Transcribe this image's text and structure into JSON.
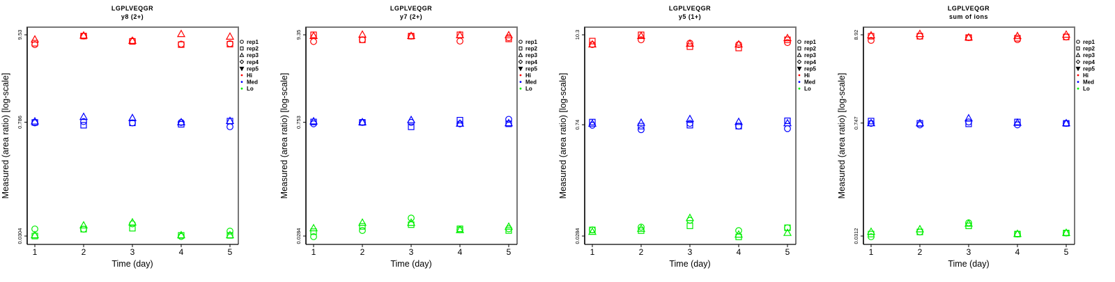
{
  "chart_data": [
    {
      "type": "scatter",
      "title": "LGPLVEQGR",
      "subtitle": "y8 (2+)",
      "xlabel": "Time (day)",
      "ylabel": "Measured (area ratio) [log-scale]",
      "yscale": "log",
      "x": [
        1,
        2,
        3,
        4,
        5
      ],
      "yticks": [
        0.0304,
        0.786,
        9.53
      ],
      "ytick_labels": [
        "0.0304",
        "0.786",
        "9.53"
      ],
      "ylim": [
        0.0304,
        9.53
      ],
      "series": [
        {
          "name": "Hi",
          "color": "#ff0000",
          "reps": {
            "rep1": [
              7.2,
              9.2,
              8.0,
              7.3,
              7.4
            ],
            "rep2": [
              7.5,
              9.2,
              7.9,
              7.2,
              7.3
            ],
            "rep3": [
              8.3,
              9.3,
              8.0,
              9.7,
              9.0
            ]
          }
        },
        {
          "name": "Med",
          "color": "#0000ff",
          "reps": {
            "rep1": [
              0.77,
              0.8,
              0.77,
              0.78,
              0.69
            ],
            "rep2": [
              0.78,
              0.72,
              0.77,
              0.74,
              0.81
            ],
            "rep3": [
              0.8,
              0.91,
              0.88,
              0.78,
              0.81
            ]
          }
        },
        {
          "name": "Lo",
          "color": "#00ee00",
          "reps": {
            "rep1": [
              0.0372,
              0.037,
              0.043,
              0.03,
              0.035
            ],
            "rep2": [
              0.0304,
              0.037,
              0.038,
              0.031,
              0.031
            ],
            "rep3": [
              0.031,
              0.041,
              0.0447,
              0.031,
              0.031
            ]
          }
        }
      ],
      "legend": {
        "position": "right",
        "entries": [
          "rep1",
          "rep2",
          "rep3",
          "rep4",
          "rep5",
          "Hi",
          "Med",
          "Lo"
        ]
      }
    },
    {
      "type": "scatter",
      "title": "LGPLVEQGR",
      "subtitle": "y7 (2+)",
      "xlabel": "Time (day)",
      "ylabel": "Measured (area ratio) [log-scale]",
      "yscale": "log",
      "x": [
        1,
        2,
        3,
        4,
        5
      ],
      "yticks": [
        0.0284,
        0.753,
        9.35
      ],
      "ytick_labels": [
        "0.0284",
        "0.753",
        "9.35"
      ],
      "ylim": [
        0.0284,
        9.35
      ],
      "series": [
        {
          "name": "Hi",
          "color": "#ff0000",
          "reps": {
            "rep1": [
              7.7,
              8.1,
              9.0,
              7.8,
              8.6
            ],
            "rep2": [
              9.35,
              8.1,
              9.0,
              9.35,
              8.3
            ],
            "rep3": [
              9.0,
              9.35,
              9.0,
              9.2,
              9.2
            ]
          }
        },
        {
          "name": "Med",
          "color": "#0000ff",
          "reps": {
            "rep1": [
              0.72,
              0.75,
              0.75,
              0.72,
              0.82
            ],
            "rep2": [
              0.76,
              0.75,
              0.66,
              0.8,
              0.72
            ],
            "rep3": [
              0.77,
              0.75,
              0.8,
              0.72,
              0.73
            ]
          }
        },
        {
          "name": "Lo",
          "color": "#00ee00",
          "reps": {
            "rep1": [
              0.0279,
              0.0333,
              0.0477,
              0.034,
              0.035
            ],
            "rep2": [
              0.0322,
              0.0375,
              0.0394,
              0.035,
              0.0333
            ],
            "rep3": [
              0.0354,
              0.0415,
              0.0415,
              0.0336,
              0.037
            ]
          }
        }
      ],
      "legend": {
        "position": "right",
        "entries": [
          "rep1",
          "rep2",
          "rep3",
          "rep4",
          "rep5",
          "Hi",
          "Med",
          "Lo"
        ]
      }
    },
    {
      "type": "scatter",
      "title": "LGPLVEQGR",
      "subtitle": "y5 (1+)",
      "xlabel": "Time (day)",
      "ylabel": "Measured (area ratio) [log-scale]",
      "yscale": "log",
      "x": [
        1,
        2,
        3,
        4,
        5
      ],
      "yticks": [
        0.0284,
        0.74,
        10.3
      ],
      "ytick_labels": [
        "0.0284",
        "0.74",
        "10.3"
      ],
      "ylim": [
        0.0284,
        10.3
      ],
      "series": [
        {
          "name": "Hi",
          "color": "#ff0000",
          "reps": {
            "rep1": [
              7.74,
              8.9,
              8.06,
              7.74,
              8.2
            ],
            "rep2": [
              8.57,
              10.3,
              7.28,
              7.0,
              8.9
            ],
            "rep3": [
              7.74,
              9.9,
              7.9,
              7.74,
              9.3
            ]
          }
        },
        {
          "name": "Med",
          "color": "#0000ff",
          "reps": {
            "rep1": [
              0.73,
              0.64,
              0.77,
              0.71,
              0.66
            ],
            "rep2": [
              0.8,
              0.71,
              0.73,
              0.71,
              0.83
            ],
            "rep3": [
              0.76,
              0.78,
              0.87,
              0.8,
              0.77
            ]
          }
        },
        {
          "name": "Lo",
          "color": "#00ee00",
          "reps": {
            "rep1": [
              0.034,
              0.0369,
              0.045,
              0.0333,
              0.0362
            ],
            "rep2": [
              0.034,
              0.0333,
              0.0383,
              0.0277,
              0.0362
            ],
            "rep3": [
              0.032,
              0.035,
              0.048,
              0.0295,
              0.031
            ]
          }
        }
      ],
      "legend": {
        "position": "right",
        "entries": [
          "rep1",
          "rep2",
          "rep3",
          "rep4",
          "rep5",
          "Hi",
          "Med",
          "Lo"
        ]
      }
    },
    {
      "type": "scatter",
      "title": "LGPLVEQGR",
      "subtitle": "sum of ions",
      "xlabel": "Time (day)",
      "ylabel": "Measured (area ratio) [log-scale]",
      "yscale": "log",
      "x": [
        1,
        2,
        3,
        4,
        5
      ],
      "yticks": [
        0.0312,
        0.747,
        8.92
      ],
      "ytick_labels": [
        "0.0312",
        "0.747",
        "8.92"
      ],
      "ylim": [
        0.0312,
        8.92
      ],
      "series": [
        {
          "name": "Hi",
          "color": "#ff0000",
          "reps": {
            "rep1": [
              7.63,
              8.57,
              8.25,
              7.8,
              8.4
            ],
            "rep2": [
              8.57,
              8.57,
              8.25,
              8.1,
              8.4
            ],
            "rep3": [
              8.75,
              9.1,
              8.25,
              8.57,
              8.92
            ]
          }
        },
        {
          "name": "Med",
          "color": "#0000ff",
          "reps": {
            "rep1": [
              0.74,
              0.71,
              0.77,
              0.71,
              0.74
            ],
            "rep2": [
              0.79,
              0.74,
              0.73,
              0.77,
              0.74
            ],
            "rep3": [
              0.74,
              0.74,
              0.85,
              0.75,
              0.74
            ]
          }
        },
        {
          "name": "Lo",
          "color": "#00ee00",
          "reps": {
            "rep1": [
              0.0306,
              0.035,
              0.0452,
              0.033,
              0.034
            ],
            "rep2": [
              0.033,
              0.035,
              0.0415,
              0.033,
              0.034
            ],
            "rep3": [
              0.035,
              0.0376,
              0.044,
              0.033,
              0.034
            ]
          }
        }
      ],
      "legend": {
        "position": "right",
        "entries": [
          "rep1",
          "rep2",
          "rep3",
          "rep4",
          "rep5",
          "Hi",
          "Med",
          "Lo"
        ]
      }
    }
  ]
}
